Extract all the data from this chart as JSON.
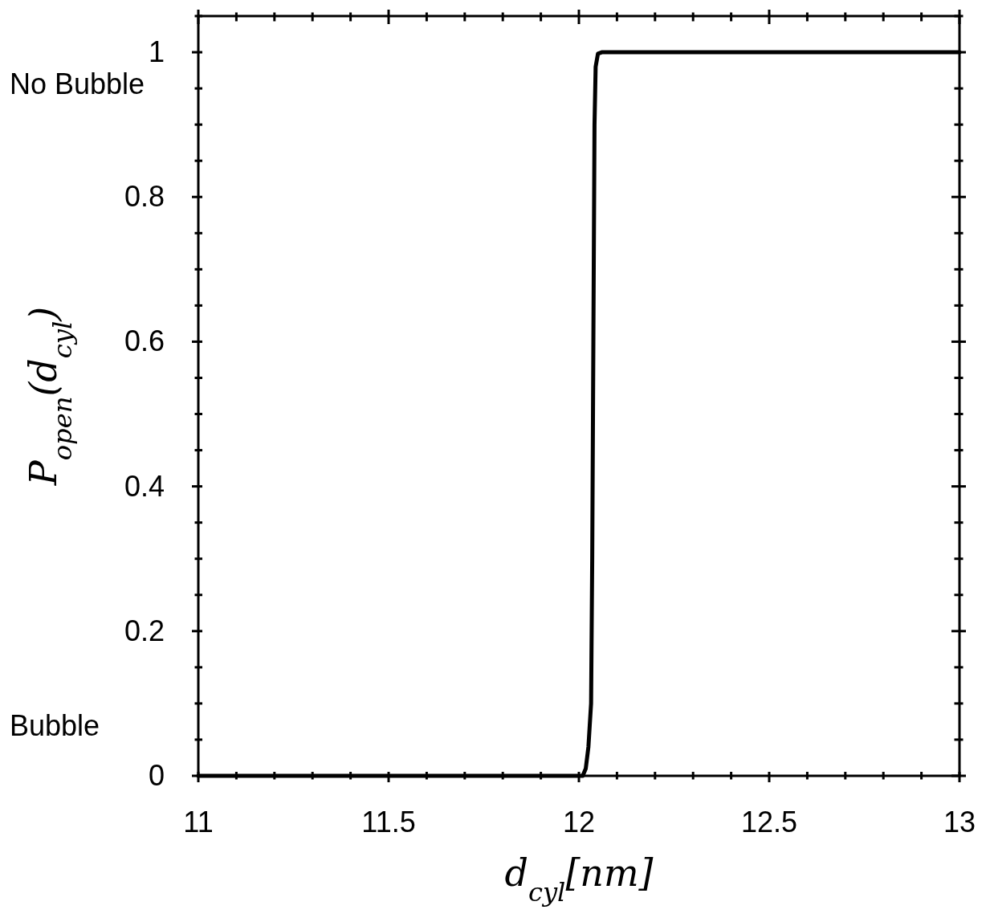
{
  "chart_data": {
    "type": "line",
    "xlabel": "d$_{cyl}$[nm]",
    "ylabel": "P$_{open}$(d$_{cyl}$)",
    "x": [
      11,
      12.01,
      12.018,
      12.025,
      12.032,
      12.035,
      12.038,
      12.041,
      12.044,
      12.05,
      12.06,
      13
    ],
    "series": [
      {
        "color": "#000000",
        "values": [
          0,
          0,
          0.01,
          0.04,
          0.1,
          0.3,
          0.6,
          0.9,
          0.98,
          0.998,
          1,
          1
        ]
      }
    ],
    "xlim": [
      11,
      13
    ],
    "ylim": [
      0,
      1.05
    ],
    "xticks": [
      11,
      {
        "value": 11.1,
        "label": null
      },
      {
        "value": 11.2,
        "label": null
      },
      {
        "value": 11.3,
        "label": null
      },
      {
        "value": 11.4,
        "label": null
      },
      11.5,
      {
        "value": 11.6,
        "label": null
      },
      {
        "value": 11.7,
        "label": null
      },
      {
        "value": 11.8,
        "label": null
      },
      {
        "value": 11.9,
        "label": null
      },
      12,
      {
        "value": 12.1,
        "label": null
      },
      {
        "value": 12.2,
        "label": null
      },
      {
        "value": 12.3,
        "label": null
      },
      {
        "value": 12.4,
        "label": null
      },
      12.5,
      {
        "value": 12.6,
        "label": null
      },
      {
        "value": 12.7,
        "label": null
      },
      {
        "value": 12.8,
        "label": null
      },
      {
        "value": 12.9,
        "label": null
      },
      13
    ],
    "yticks": [
      0,
      {
        "value": 0.05,
        "label": null
      },
      {
        "value": 0.1,
        "label": null
      },
      {
        "value": 0.15,
        "label": null
      },
      0.2,
      {
        "value": 0.25,
        "label": null
      },
      {
        "value": 0.3,
        "label": null
      },
      {
        "value": 0.35,
        "label": null
      },
      0.4,
      {
        "value": 0.45,
        "label": null
      },
      {
        "value": 0.5,
        "label": null
      },
      {
        "value": 0.55,
        "label": null
      },
      0.6,
      {
        "value": 0.65,
        "label": null
      },
      {
        "value": 0.7,
        "label": null
      },
      {
        "value": 0.75,
        "label": null
      },
      0.8,
      {
        "value": 0.85,
        "label": null
      },
      {
        "value": 0.9,
        "label": null
      },
      {
        "value": 0.95,
        "label": null
      },
      1,
      {
        "value": 1.05,
        "label": null
      }
    ],
    "annotations": [
      "No Bubble",
      "Bubble"
    ],
    "grid": false,
    "marker": "none",
    "line_style": "solid"
  }
}
